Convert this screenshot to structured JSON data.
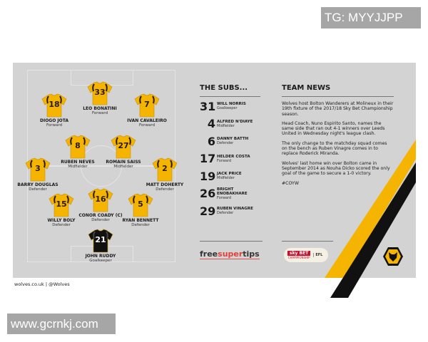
{
  "watermark_top": "TG: MYYJJPP",
  "watermark_bottom": "www.gcrnkj.com",
  "colors": {
    "gold": "#f4b400",
    "black": "#111111",
    "panel": "#d3d3d3"
  },
  "lineup": [
    {
      "number": "33",
      "name": "LEO BONATINI",
      "position": "Forward",
      "kit": "outfield"
    },
    {
      "number": "18",
      "name": "DIOGO JOTA",
      "position": "Forward",
      "kit": "outfield"
    },
    {
      "number": "7",
      "name": "IVAN CAVALEIRO",
      "position": "Forward",
      "kit": "outfield"
    },
    {
      "number": "8",
      "name": "RUBEN NEVES",
      "position": "Midfielder",
      "kit": "outfield"
    },
    {
      "number": "27",
      "name": "ROMAIN SAISS",
      "position": "Midfielder",
      "kit": "outfield"
    },
    {
      "number": "3",
      "name": "BARRY DOUGLAS",
      "position": "Defender",
      "kit": "outfield"
    },
    {
      "number": "2",
      "name": "MATT DOHERTY",
      "position": "Defender",
      "kit": "outfield"
    },
    {
      "number": "15",
      "name": "WILLY BOLY",
      "position": "Defender",
      "kit": "outfield"
    },
    {
      "number": "16",
      "name": "CONOR COADY (C)",
      "position": "Defender",
      "kit": "outfield"
    },
    {
      "number": "5",
      "name": "RYAN BENNETT",
      "position": "Defender",
      "kit": "outfield"
    },
    {
      "number": "21",
      "name": "JOHN RUDDY",
      "position": "Goalkeeper",
      "kit": "goalkeeper"
    }
  ],
  "subs": {
    "title": "THE SUBS...",
    "players": [
      {
        "number": "31",
        "name": "WILL NORRIS",
        "position": "Goalkeeper"
      },
      {
        "number": "4",
        "name": "ALFRED N'DIAYE",
        "position": "Midfielder"
      },
      {
        "number": "6",
        "name": "DANNY BATTH",
        "position": "Defender"
      },
      {
        "number": "17",
        "name": "HELDER COSTA",
        "position": "Forward"
      },
      {
        "number": "19",
        "name": "JACK PRICE",
        "position": "Midfielder"
      },
      {
        "number": "26",
        "name": "BRIGHT ENOBAKHARE",
        "position": "Forward"
      },
      {
        "number": "29",
        "name": "RUBEN VINAGRE",
        "position": "Defender"
      }
    ]
  },
  "news": {
    "title": "TEAM NEWS",
    "paragraphs": [
      "Wolves host Bolton Wanderers at Molineux in their 19th fixture of the 2017/18 Sky Bet Championship season.",
      "Head Coach, Nuno Espirito Santo, names the same side that ran out 4-1 winners over Leeds United in Wednesday night's league clash.",
      "The only change to the matchday squad comes on the bench as Ruben Vinagre comes in to replace Roderick Miranda.",
      "Wolves' last home win over Bolton came in September 2014 as Nouha Dicko scored the only goal of the game to secure a 1-0 victory.",
      "#COYW"
    ]
  },
  "sponsors": {
    "freesupertips_a": "free",
    "freesupertips_b": "super",
    "freesupertips_c": "tips",
    "skybet": "sky BET",
    "skybet_sub": "CHAMPIONSHIP",
    "efl": "EFL"
  },
  "footer": "wolves.co.uk  |  @Wolves"
}
